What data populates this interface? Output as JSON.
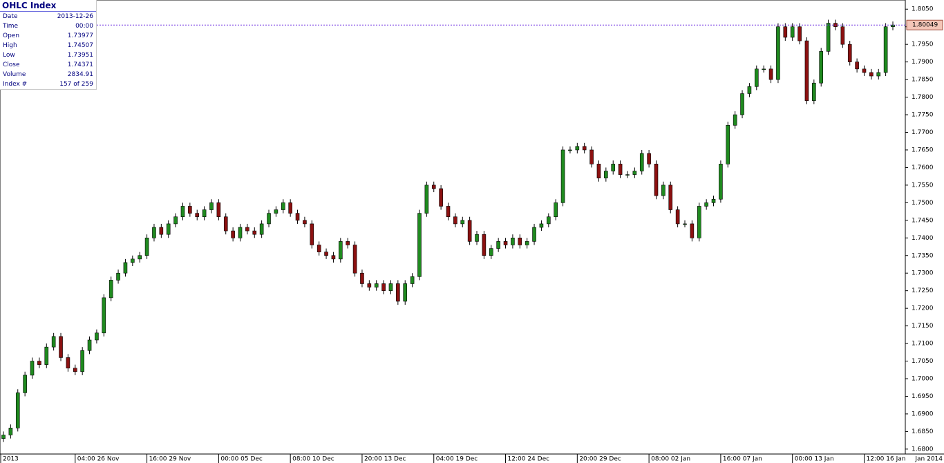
{
  "info_panel": {
    "title": "OHLC Index",
    "rows": [
      [
        "Date",
        "2013-12-26"
      ],
      [
        "Time",
        "00:00"
      ],
      [
        "Open",
        "1.73977"
      ],
      [
        "High",
        "1.74507"
      ],
      [
        "Low",
        "1.73951"
      ],
      [
        "Close",
        "1.74371"
      ],
      [
        "Volume",
        "2834.91"
      ],
      [
        "Index #",
        "157 of 259"
      ]
    ]
  },
  "chart_data": {
    "type": "candlestick",
    "categories": [
      "2013",
      null,
      null,
      null,
      null,
      null,
      null,
      null,
      null,
      null,
      "04:00 26 Nov",
      null,
      null,
      null,
      null,
      null,
      null,
      null,
      null,
      null,
      "16:00 29 Nov",
      null,
      null,
      null,
      null,
      null,
      null,
      null,
      null,
      null,
      "00:00 05 Dec",
      null,
      null,
      null,
      null,
      null,
      null,
      null,
      null,
      null,
      "08:00 10 Dec",
      null,
      null,
      null,
      null,
      null,
      null,
      null,
      null,
      null,
      "20:00 13 Dec",
      null,
      null,
      null,
      null,
      null,
      null,
      null,
      null,
      null,
      "04:00 19 Dec",
      null,
      null,
      null,
      null,
      null,
      null,
      null,
      null,
      null,
      "12:00 24 Dec",
      null,
      null,
      null,
      null,
      null,
      null,
      null,
      null,
      null,
      "20:00 29 Dec",
      null,
      null,
      null,
      null,
      null,
      null,
      null,
      null,
      null,
      "08:00 02 Jan",
      null,
      null,
      null,
      null,
      null,
      null,
      null,
      null,
      null,
      "16:00 07 Jan",
      null,
      null,
      null,
      null,
      null,
      null,
      null,
      null,
      null,
      "00:00 13 Jan",
      null,
      null,
      null,
      null,
      null,
      null,
      null,
      null,
      null,
      "12:00 16 Jan",
      null,
      null,
      null,
      null
    ],
    "end_label": "Jan 2014",
    "open": [
      1.683,
      1.684,
      1.686,
      1.696,
      1.701,
      1.705,
      1.704,
      1.709,
      1.712,
      1.706,
      1.703,
      1.702,
      1.708,
      1.711,
      1.713,
      1.723,
      1.728,
      1.73,
      1.733,
      1.734,
      1.735,
      1.74,
      1.743,
      1.741,
      1.744,
      1.746,
      1.749,
      1.747,
      1.746,
      1.748,
      1.75,
      1.746,
      1.742,
      1.74,
      1.743,
      1.742,
      1.741,
      1.744,
      1.747,
      1.748,
      1.75,
      1.747,
      1.745,
      1.744,
      1.738,
      1.736,
      1.735,
      1.734,
      1.739,
      1.738,
      1.73,
      1.727,
      1.726,
      1.727,
      1.725,
      1.727,
      1.722,
      1.727,
      1.729,
      1.747,
      1.755,
      1.754,
      1.749,
      1.746,
      1.744,
      1.745,
      1.739,
      1.741,
      1.735,
      1.737,
      1.739,
      1.738,
      1.74,
      1.738,
      1.739,
      1.743,
      1.744,
      1.746,
      1.75,
      1.765,
      1.765,
      1.766,
      1.765,
      1.761,
      1.757,
      1.759,
      1.761,
      1.758,
      1.758,
      1.759,
      1.764,
      1.761,
      1.752,
      1.755,
      1.748,
      1.744,
      1.744,
      1.74,
      1.749,
      1.75,
      1.751,
      1.761,
      1.772,
      1.775,
      1.781,
      1.783,
      1.788,
      1.788,
      1.785,
      1.8,
      1.797,
      1.8,
      1.796,
      1.779,
      1.784,
      1.793,
      1.801,
      1.8,
      1.795,
      1.79,
      1.788,
      1.787,
      1.786,
      1.787,
      1.8
    ],
    "high": [
      1.685,
      1.687,
      1.697,
      1.702,
      1.706,
      1.706,
      1.71,
      1.713,
      1.713,
      1.707,
      1.704,
      1.709,
      1.712,
      1.714,
      1.724,
      1.729,
      1.731,
      1.734,
      1.735,
      1.736,
      1.741,
      1.744,
      1.744,
      1.745,
      1.747,
      1.75,
      1.75,
      1.748,
      1.749,
      1.751,
      1.751,
      1.747,
      1.743,
      1.744,
      1.744,
      1.743,
      1.745,
      1.748,
      1.749,
      1.751,
      1.751,
      1.748,
      1.746,
      1.745,
      1.739,
      1.737,
      1.736,
      1.74,
      1.74,
      1.739,
      1.731,
      1.728,
      1.728,
      1.728,
      1.728,
      1.728,
      1.728,
      1.73,
      1.748,
      1.756,
      1.756,
      1.755,
      1.75,
      1.747,
      1.746,
      1.746,
      1.742,
      1.742,
      1.738,
      1.74,
      1.74,
      1.741,
      1.741,
      1.74,
      1.744,
      1.745,
      1.747,
      1.751,
      1.766,
      1.766,
      1.767,
      1.767,
      1.766,
      1.762,
      1.76,
      1.762,
      1.762,
      1.759,
      1.76,
      1.765,
      1.765,
      1.762,
      1.756,
      1.756,
      1.749,
      1.745,
      1.745,
      1.75,
      1.751,
      1.752,
      1.762,
      1.773,
      1.776,
      1.782,
      1.784,
      1.789,
      1.789,
      1.789,
      1.801,
      1.801,
      1.801,
      1.801,
      1.797,
      1.785,
      1.794,
      1.802,
      1.802,
      1.801,
      1.796,
      1.791,
      1.789,
      1.788,
      1.788,
      1.801,
      1.8015
    ],
    "low": [
      1.682,
      1.683,
      1.685,
      1.695,
      1.7,
      1.703,
      1.703,
      1.708,
      1.705,
      1.702,
      1.701,
      1.701,
      1.707,
      1.71,
      1.712,
      1.722,
      1.727,
      1.729,
      1.732,
      1.733,
      1.734,
      1.739,
      1.74,
      1.74,
      1.743,
      1.745,
      1.746,
      1.745,
      1.745,
      1.747,
      1.745,
      1.741,
      1.739,
      1.739,
      1.741,
      1.74,
      1.74,
      1.743,
      1.746,
      1.747,
      1.746,
      1.744,
      1.743,
      1.737,
      1.735,
      1.734,
      1.733,
      1.733,
      1.737,
      1.729,
      1.726,
      1.725,
      1.725,
      1.724,
      1.724,
      1.721,
      1.721,
      1.726,
      1.728,
      1.746,
      1.753,
      1.748,
      1.745,
      1.743,
      1.743,
      1.738,
      1.738,
      1.734,
      1.734,
      1.736,
      1.737,
      1.737,
      1.737,
      1.737,
      1.738,
      1.742,
      1.743,
      1.745,
      1.749,
      1.764,
      1.764,
      1.764,
      1.76,
      1.756,
      1.756,
      1.758,
      1.757,
      1.757,
      1.757,
      1.758,
      1.76,
      1.751,
      1.751,
      1.747,
      1.743,
      1.743,
      1.739,
      1.739,
      1.748,
      1.749,
      1.75,
      1.76,
      1.771,
      1.774,
      1.78,
      1.782,
      1.787,
      1.784,
      1.784,
      1.796,
      1.796,
      1.795,
      1.778,
      1.778,
      1.783,
      1.792,
      1.799,
      1.794,
      1.789,
      1.787,
      1.786,
      1.785,
      1.785,
      1.786,
      1.799
    ],
    "close": [
      1.684,
      1.686,
      1.696,
      1.701,
      1.705,
      1.704,
      1.709,
      1.712,
      1.706,
      1.703,
      1.702,
      1.708,
      1.711,
      1.713,
      1.723,
      1.728,
      1.73,
      1.733,
      1.734,
      1.735,
      1.74,
      1.743,
      1.741,
      1.744,
      1.746,
      1.749,
      1.747,
      1.746,
      1.748,
      1.75,
      1.746,
      1.742,
      1.74,
      1.743,
      1.742,
      1.741,
      1.744,
      1.747,
      1.748,
      1.75,
      1.747,
      1.745,
      1.744,
      1.738,
      1.736,
      1.735,
      1.734,
      1.739,
      1.738,
      1.73,
      1.727,
      1.726,
      1.727,
      1.725,
      1.727,
      1.722,
      1.727,
      1.729,
      1.747,
      1.755,
      1.754,
      1.749,
      1.746,
      1.744,
      1.745,
      1.739,
      1.741,
      1.735,
      1.737,
      1.739,
      1.738,
      1.74,
      1.738,
      1.739,
      1.743,
      1.744,
      1.746,
      1.75,
      1.765,
      1.765,
      1.766,
      1.765,
      1.761,
      1.757,
      1.759,
      1.761,
      1.758,
      1.758,
      1.759,
      1.764,
      1.761,
      1.752,
      1.755,
      1.748,
      1.744,
      1.744,
      1.74,
      1.749,
      1.75,
      1.751,
      1.761,
      1.772,
      1.775,
      1.781,
      1.783,
      1.788,
      1.788,
      1.785,
      1.8,
      1.797,
      1.8,
      1.796,
      1.779,
      1.784,
      1.793,
      1.801,
      1.8,
      1.795,
      1.79,
      1.788,
      1.787,
      1.786,
      1.787,
      1.8,
      1.8005
    ],
    "up_color": "#1f8a1f",
    "down_color": "#8b1010",
    "last_price": 1.80049,
    "ylim": [
      1.6786,
      1.8076
    ],
    "yticks": [
      {
        "value": 1.68,
        "label": "1.6800"
      },
      {
        "value": 1.685,
        "label": "1.6850"
      },
      {
        "value": 1.69,
        "label": "1.6900"
      },
      {
        "value": 1.695,
        "label": "1.6950"
      },
      {
        "value": 1.7,
        "label": "1.7000"
      },
      {
        "value": 1.705,
        "label": "1.7050"
      },
      {
        "value": 1.71,
        "label": "1.7100"
      },
      {
        "value": 1.715,
        "label": "1.7150"
      },
      {
        "value": 1.72,
        "label": "1.7200"
      },
      {
        "value": 1.725,
        "label": "1.7250"
      },
      {
        "value": 1.73,
        "label": "1.7300"
      },
      {
        "value": 1.735,
        "label": "1.7350"
      },
      {
        "value": 1.74,
        "label": "1.7400"
      },
      {
        "value": 1.745,
        "label": "1.7450"
      },
      {
        "value": 1.75,
        "label": "1.7500"
      },
      {
        "value": 1.755,
        "label": "1.7550"
      },
      {
        "value": 1.76,
        "label": "1.7600"
      },
      {
        "value": 1.765,
        "label": "1.7650"
      },
      {
        "value": 1.77,
        "label": "1.7700"
      },
      {
        "value": 1.775,
        "label": "1.7750"
      },
      {
        "value": 1.78,
        "label": "1.7800"
      },
      {
        "value": 1.785,
        "label": "1.7850"
      },
      {
        "value": 1.79,
        "label": "1.7900"
      },
      {
        "value": 1.795,
        "label": "1.7950"
      },
      {
        "value": 1.8,
        "label": "1.8000"
      },
      {
        "value": 1.805,
        "label": "1.8050"
      }
    ]
  }
}
